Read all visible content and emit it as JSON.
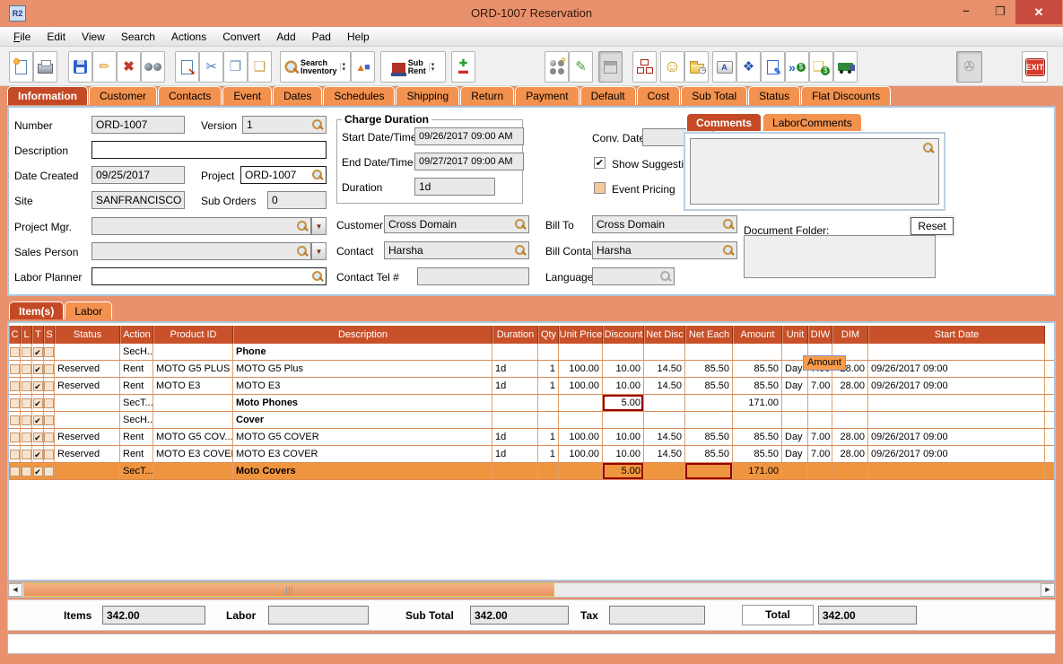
{
  "window": {
    "title": "ORD-1007 Reservation",
    "icon_text": "R2",
    "controls": [
      "minimize",
      "maximize",
      "close"
    ]
  },
  "menu_bar": {
    "items": [
      "File",
      "Edit",
      "View",
      "Search",
      "Actions",
      "Convert",
      "Add",
      "Pad",
      "Help"
    ]
  },
  "toolbar": {
    "buttons": [
      {
        "name": "new-document-button",
        "icon": "new-document-icon"
      },
      {
        "name": "print-button",
        "icon": "printer-icon"
      },
      {
        "name": "save-button",
        "icon": "floppy-disk-icon"
      },
      {
        "name": "edit-button",
        "icon": "pencil-icon"
      },
      {
        "name": "delete-button",
        "icon": "red-x-icon"
      },
      {
        "name": "find-button",
        "icon": "binoculars-icon"
      },
      {
        "name": "export-document-button",
        "icon": "document-arrow-icon"
      },
      {
        "name": "cut-button",
        "icon": "scissors-icon"
      },
      {
        "name": "copy-button",
        "icon": "copy-icon"
      },
      {
        "name": "paste-button",
        "icon": "paste-icon"
      },
      {
        "name": "search-inventory-button",
        "icon": "magnifier-icon",
        "label": "Search Inventory",
        "dropdown": true
      },
      {
        "name": "assemblies-button",
        "icon": "shapes-icon"
      },
      {
        "name": "sub-rent-button",
        "icon": "factory-icon",
        "label": "Sub Rent",
        "dropdown": true
      },
      {
        "name": "add-remove-button",
        "icon": "plus-minus-icon"
      },
      {
        "name": "availability-button",
        "icon": "circles-question-icon"
      },
      {
        "name": "notes-button",
        "icon": "notepad-pencil-icon"
      },
      {
        "name": "calendar-button",
        "icon": "calendar-icon",
        "disabled": true
      },
      {
        "name": "org-chart-button",
        "icon": "org-chart-icon"
      },
      {
        "name": "customer-button",
        "icon": "smiley-icon"
      },
      {
        "name": "history-folder-button",
        "icon": "folder-clock-icon"
      },
      {
        "name": "keyboard-button",
        "icon": "keyboard-key-icon"
      },
      {
        "name": "kit-button",
        "icon": "cubes-icon"
      },
      {
        "name": "edit-order-button",
        "icon": "document-pencil-icon"
      },
      {
        "name": "convert-invoice-button",
        "icon": "arrows-dollar-icon"
      },
      {
        "name": "billing-button",
        "icon": "note-dollar-icon"
      },
      {
        "name": "delivery-button",
        "icon": "truck-icon"
      },
      {
        "name": "attachment-button",
        "icon": "stamp-icon",
        "disabled": true
      },
      {
        "name": "exit-button",
        "icon": "exit-icon",
        "label": "EXIT"
      }
    ]
  },
  "main_tabs": {
    "items": [
      "Information",
      "Customer",
      "Contacts",
      "Event",
      "Dates",
      "Schedules",
      "Shipping",
      "Return",
      "Payment",
      "Default",
      "Cost",
      "Sub Total",
      "Status",
      "Flat Discounts"
    ],
    "active": "Information"
  },
  "info_form": {
    "number": {
      "label": "Number",
      "value": "ORD-1007"
    },
    "version": {
      "label": "Version",
      "value": "1"
    },
    "description": {
      "label": "Description",
      "value": ""
    },
    "date_created": {
      "label": "Date Created",
      "value": "09/25/2017"
    },
    "project": {
      "label": "Project",
      "value": "ORD-1007"
    },
    "site": {
      "label": "Site",
      "value": "SANFRANCISCO"
    },
    "sub_orders": {
      "label": "Sub Orders",
      "value": "0"
    },
    "project_mgr": {
      "label": "Project Mgr.",
      "value": ""
    },
    "sales_person": {
      "label": "Sales Person",
      "value": ""
    },
    "labor_planner": {
      "label": "Labor Planner",
      "value": ""
    },
    "charge_duration": {
      "title": "Charge Duration",
      "start": {
        "label": "Start Date/Time",
        "value": "09/26/2017 09:00 AM"
      },
      "end": {
        "label": "End Date/Time",
        "value": "09/27/2017 09:00 AM"
      },
      "duration": {
        "label": "Duration",
        "value": "1d"
      }
    },
    "conv_date": {
      "label": "Conv. Date",
      "value": ""
    },
    "show_suggestions": {
      "label": "Show Suggestions",
      "checked": true
    },
    "event_pricing": {
      "label": "Event Pricing",
      "checked": false
    },
    "customer": {
      "label": "Customer",
      "value": "Cross Domain"
    },
    "bill_to": {
      "label": "Bill To",
      "value": "Cross Domain"
    },
    "contact": {
      "label": "Contact",
      "value": "Harsha"
    },
    "bill_contact": {
      "label": "Bill Contact",
      "value": "Harsha"
    },
    "contact_tel": {
      "label": "Contact Tel #",
      "value": ""
    },
    "language": {
      "label": "Language",
      "value": ""
    }
  },
  "comments_panel": {
    "tabs": [
      "Comments",
      "LaborComments"
    ],
    "active": "Comments",
    "text": ""
  },
  "document_folder": {
    "label": "Document Folder:",
    "reset_label": "Reset",
    "value": ""
  },
  "items_panel": {
    "tabs": [
      "Item(s)",
      "Labor"
    ],
    "active": "Item(s)"
  },
  "items_table": {
    "tooltip": "Amount",
    "columns": [
      {
        "key": "c",
        "label": "C"
      },
      {
        "key": "l",
        "label": "L"
      },
      {
        "key": "t",
        "label": "T"
      },
      {
        "key": "s",
        "label": "S"
      },
      {
        "key": "status",
        "label": "Status"
      },
      {
        "key": "action",
        "label": "Action"
      },
      {
        "key": "product_id",
        "label": "Product ID"
      },
      {
        "key": "description",
        "label": "Description"
      },
      {
        "key": "duration",
        "label": "Duration"
      },
      {
        "key": "qty",
        "label": "Qty"
      },
      {
        "key": "unit_price",
        "label": "Unit Price"
      },
      {
        "key": "discount",
        "label": "Discount"
      },
      {
        "key": "net_disc",
        "label": "Net Disc"
      },
      {
        "key": "net_each",
        "label": "Net Each"
      },
      {
        "key": "amount",
        "label": "Amount"
      },
      {
        "key": "unit",
        "label": "Unit"
      },
      {
        "key": "diw",
        "label": "DIW"
      },
      {
        "key": "dim",
        "label": "DIM"
      },
      {
        "key": "start_date",
        "label": "Start Date"
      }
    ],
    "rows": [
      {
        "checks": [
          false,
          false,
          true,
          false
        ],
        "status": "",
        "action": "SecH...",
        "product_id": "",
        "description": "Phone",
        "bold": true,
        "duration": "",
        "qty": "",
        "unit_price": "",
        "discount": "",
        "net_disc": "",
        "net_each": "",
        "amount": "",
        "unit": "",
        "diw": "",
        "dim": "",
        "start_date": "",
        "selected": false,
        "red_cells": []
      },
      {
        "checks": [
          false,
          false,
          true,
          false
        ],
        "status": "Reserved",
        "action": "Rent",
        "product_id": "MOTO G5 PLUS",
        "description": "MOTO G5 Plus",
        "bold": false,
        "duration": "1d",
        "qty": "1",
        "unit_price": "100.00",
        "discount": "10.00",
        "net_disc": "14.50",
        "net_each": "85.50",
        "amount": "85.50",
        "unit": "Day",
        "diw": "7.00",
        "dim": "28.00",
        "start_date": "09/26/2017 09:00",
        "selected": false,
        "red_cells": []
      },
      {
        "checks": [
          false,
          false,
          true,
          false
        ],
        "status": "Reserved",
        "action": "Rent",
        "product_id": "MOTO E3",
        "description": "MOTO E3",
        "bold": false,
        "duration": "1d",
        "qty": "1",
        "unit_price": "100.00",
        "discount": "10.00",
        "net_disc": "14.50",
        "net_each": "85.50",
        "amount": "85.50",
        "unit": "Day",
        "diw": "7.00",
        "dim": "28.00",
        "start_date": "09/26/2017 09:00",
        "selected": false,
        "red_cells": []
      },
      {
        "checks": [
          false,
          false,
          true,
          false
        ],
        "status": "",
        "action": "SecT...",
        "product_id": "",
        "description": "Moto Phones",
        "bold": true,
        "duration": "",
        "qty": "",
        "unit_price": "",
        "discount": "5.00",
        "net_disc": "",
        "net_each": "",
        "amount": "171.00",
        "unit": "",
        "diw": "",
        "dim": "",
        "start_date": "",
        "selected": false,
        "red_cells": [
          "discount"
        ]
      },
      {
        "checks": [
          false,
          false,
          true,
          false
        ],
        "status": "",
        "action": "SecH...",
        "product_id": "",
        "description": "Cover",
        "bold": true,
        "duration": "",
        "qty": "",
        "unit_price": "",
        "discount": "",
        "net_disc": "",
        "net_each": "",
        "amount": "",
        "unit": "",
        "diw": "",
        "dim": "",
        "start_date": "",
        "selected": false,
        "red_cells": []
      },
      {
        "checks": [
          false,
          false,
          true,
          false
        ],
        "status": "Reserved",
        "action": "Rent",
        "product_id": "MOTO G5 COV...",
        "description": "MOTO G5 COVER",
        "bold": false,
        "duration": "1d",
        "qty": "1",
        "unit_price": "100.00",
        "discount": "10.00",
        "net_disc": "14.50",
        "net_each": "85.50",
        "amount": "85.50",
        "unit": "Day",
        "diw": "7.00",
        "dim": "28.00",
        "start_date": "09/26/2017 09:00",
        "selected": false,
        "red_cells": []
      },
      {
        "checks": [
          false,
          false,
          true,
          false
        ],
        "status": "Reserved",
        "action": "Rent",
        "product_id": "MOTO E3 COVER",
        "description": "MOTO E3 COVER",
        "bold": false,
        "duration": "1d",
        "qty": "1",
        "unit_price": "100.00",
        "discount": "10.00",
        "net_disc": "14.50",
        "net_each": "85.50",
        "amount": "85.50",
        "unit": "Day",
        "diw": "7.00",
        "dim": "28.00",
        "start_date": "09/26/2017 09:00",
        "selected": false,
        "red_cells": []
      },
      {
        "checks": [
          false,
          false,
          true,
          false
        ],
        "status": "",
        "action": "SecT...",
        "product_id": "",
        "description": "Moto Covers",
        "bold": true,
        "duration": "",
        "qty": "",
        "unit_price": "",
        "discount": "5.00",
        "net_disc": "",
        "net_each": "",
        "amount": "171.00",
        "unit": "",
        "diw": "",
        "dim": "",
        "start_date": "",
        "selected": true,
        "red_cells": [
          "discount",
          "net_each"
        ]
      }
    ]
  },
  "totals": {
    "items": {
      "label": "Items",
      "value": "342.00"
    },
    "labor": {
      "label": "Labor",
      "value": ""
    },
    "sub_total": {
      "label": "Sub Total",
      "value": "342.00"
    },
    "tax": {
      "label": "Tax",
      "value": ""
    },
    "total": {
      "label": "Total",
      "value": "342.00"
    }
  },
  "colors": {
    "titlebar": "#E8916C",
    "tab_active": "#C44A26",
    "tab_inactive": "#F2924E",
    "table_header": "#C8512A",
    "row_selected": "#F0953F",
    "close_button": "#C94C40",
    "red_cell_border": "#990000",
    "tooltip_bg": "#F89C4B"
  }
}
